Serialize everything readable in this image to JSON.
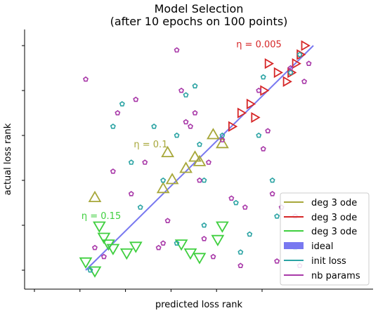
{
  "chart_data": {
    "type": "scatter",
    "title": [
      "Model Selection",
      "(after 10 epochs on 100 points)"
    ],
    "xlabel": "predicted loss rank",
    "ylabel": "actual loss rank",
    "xlim": [
      -5,
      105
    ],
    "ylim": [
      -5,
      105
    ],
    "xticks": [
      0,
      20,
      40,
      60,
      80,
      100
    ],
    "yticks": [
      0,
      20,
      40,
      60,
      80,
      100
    ],
    "grid": false,
    "legend_position": "lower-right",
    "ideal_line": {
      "x": [
        0,
        100
      ],
      "y": [
        0,
        100
      ]
    },
    "annotations": [
      {
        "text": "η = 0.005",
        "x": 80,
        "y": 100.5,
        "color": "#d62728"
      },
      {
        "text": "η = 0.1",
        "x": 35,
        "y": 56,
        "color": "#a7a73a"
      },
      {
        "text": "η = 0.15",
        "x": 12,
        "y": 24,
        "color": "#3fcf3f"
      }
    ],
    "series": [
      {
        "name": "deg 3 ode",
        "marker": "triangle-up",
        "color": "#a7a73a",
        "points": [
          [
            4,
            32
          ],
          [
            34,
            36
          ],
          [
            36,
            52
          ],
          [
            38,
            40
          ],
          [
            44,
            45
          ],
          [
            48,
            50
          ],
          [
            50,
            48
          ],
          [
            56,
            60
          ],
          [
            60,
            56
          ]
        ]
      },
      {
        "name": "deg 3 ode",
        "marker": "triangle-up-rot",
        "color": "#d62728",
        "points": [
          [
            64,
            64
          ],
          [
            68,
            70
          ],
          [
            72,
            74
          ],
          [
            74,
            68
          ],
          [
            78,
            80
          ],
          [
            80,
            92
          ],
          [
            84,
            88
          ],
          [
            88,
            84
          ],
          [
            90,
            88
          ],
          [
            92,
            92
          ],
          [
            94,
            96
          ],
          [
            96,
            100
          ]
        ]
      },
      {
        "name": "deg 3 ode",
        "marker": "triangle-down",
        "color": "#3fcf3f",
        "points": [
          [
            0,
            4
          ],
          [
            4,
            0
          ],
          [
            6,
            20
          ],
          [
            8,
            15
          ],
          [
            10,
            12
          ],
          [
            12,
            10
          ],
          [
            18,
            8
          ],
          [
            22,
            11
          ],
          [
            42,
            12
          ],
          [
            46,
            8
          ],
          [
            50,
            6
          ],
          [
            58,
            14
          ],
          [
            60,
            20
          ]
        ]
      },
      {
        "name": "init loss",
        "marker": "pentagon",
        "color": "#2ca4a4",
        "points": [
          [
            2,
            0
          ],
          [
            12,
            64
          ],
          [
            16,
            74
          ],
          [
            20,
            48
          ],
          [
            24,
            28
          ],
          [
            30,
            64
          ],
          [
            34,
            40
          ],
          [
            40,
            60
          ],
          [
            40,
            12
          ],
          [
            44,
            78
          ],
          [
            48,
            82
          ],
          [
            50,
            56
          ],
          [
            52,
            40
          ],
          [
            52,
            20
          ],
          [
            60,
            60
          ],
          [
            66,
            30
          ],
          [
            68,
            8
          ],
          [
            72,
            16
          ],
          [
            76,
            60
          ],
          [
            78,
            86
          ],
          [
            82,
            40
          ],
          [
            84,
            24
          ],
          [
            90,
            88
          ],
          [
            92,
            10
          ],
          [
            94,
            96
          ]
        ]
      },
      {
        "name": "nb params",
        "marker": "pentagon",
        "color": "#a93aa9",
        "points": [
          [
            0,
            85
          ],
          [
            4,
            10
          ],
          [
            8,
            6
          ],
          [
            12,
            44
          ],
          [
            14,
            70
          ],
          [
            20,
            34
          ],
          [
            22,
            76
          ],
          [
            26,
            48
          ],
          [
            32,
            10
          ],
          [
            34,
            12
          ],
          [
            36,
            22
          ],
          [
            40,
            98
          ],
          [
            42,
            80
          ],
          [
            44,
            66
          ],
          [
            46,
            64
          ],
          [
            48,
            70
          ],
          [
            50,
            40
          ],
          [
            52,
            14
          ],
          [
            54,
            48
          ],
          [
            56,
            6
          ],
          [
            60,
            58
          ],
          [
            64,
            32
          ],
          [
            68,
            2
          ],
          [
            70,
            28
          ],
          [
            76,
            80
          ],
          [
            78,
            54
          ],
          [
            80,
            62
          ],
          [
            82,
            34
          ],
          [
            84,
            4
          ],
          [
            86,
            28
          ],
          [
            90,
            90
          ],
          [
            92,
            24
          ],
          [
            94,
            2
          ],
          [
            96,
            84
          ],
          [
            98,
            92
          ]
        ]
      }
    ],
    "legend": [
      {
        "label": "deg 3 ode",
        "color": "#a7a73a",
        "kind": "line"
      },
      {
        "label": "deg 3 ode",
        "color": "#d62728",
        "kind": "line"
      },
      {
        "label": "deg 3 ode",
        "color": "#3fcf3f",
        "kind": "line"
      },
      {
        "label": "ideal",
        "color": "#7878f0",
        "kind": "patch"
      },
      {
        "label": "init loss",
        "color": "#2ca4a4",
        "kind": "line"
      },
      {
        "label": "nb params",
        "color": "#a93aa9",
        "kind": "line"
      }
    ],
    "colors": {
      "ideal": "#7878f0",
      "axis": "#000000",
      "legend_edge": "#cccccc"
    }
  }
}
